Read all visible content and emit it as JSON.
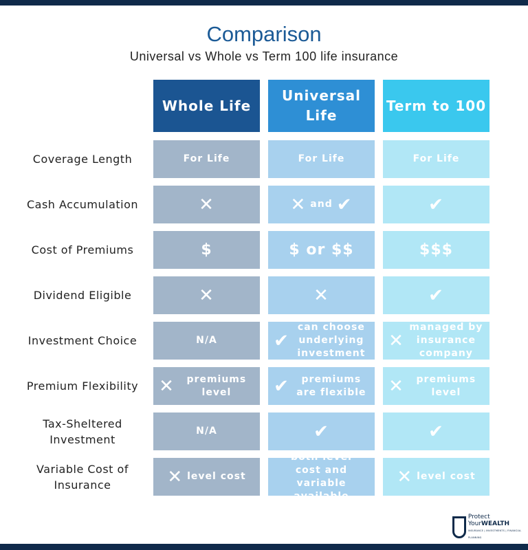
{
  "title": "Comparison",
  "subtitle": "Universal vs Whole vs Term 100 life insurance",
  "columns": [
    "Whole Life",
    "Universal Life",
    "Term to 100"
  ],
  "colors": {
    "header": [
      "#1b5592",
      "#2e8fd5",
      "#3ac8ee"
    ],
    "cells": [
      "#a2b5c9",
      "#a8d1ee",
      "#b1e7f6"
    ],
    "bars": "#0f2a4a"
  },
  "rows": [
    {
      "label": "Coverage Length",
      "cells": [
        {
          "icon": "",
          "text": "For Life"
        },
        {
          "icon": "",
          "text": "For Life"
        },
        {
          "icon": "",
          "text": "For Life"
        }
      ]
    },
    {
      "label": "Cash Accumulation",
      "cells": [
        {
          "icon": "x-icon",
          "text": ""
        },
        {
          "icon": "x-icon",
          "text": "and",
          "icon2": "check-icon"
        },
        {
          "icon": "check-icon",
          "text": ""
        }
      ]
    },
    {
      "label": "Cost of Premiums",
      "cells": [
        {
          "icon": "",
          "text": "$"
        },
        {
          "icon": "",
          "text": "$ or $$"
        },
        {
          "icon": "",
          "text": "$$$"
        }
      ]
    },
    {
      "label": "Dividend Eligible",
      "cells": [
        {
          "icon": "x-icon",
          "text": ""
        },
        {
          "icon": "x-icon",
          "text": ""
        },
        {
          "icon": "check-icon",
          "text": ""
        }
      ]
    },
    {
      "label": "Investment Choice",
      "cells": [
        {
          "icon": "",
          "text": "N/A"
        },
        {
          "icon": "check-icon",
          "text": "can choose underlying investment"
        },
        {
          "icon": "x-icon",
          "text": "managed by insurance company"
        }
      ]
    },
    {
      "label": "Premium Flexibility",
      "cells": [
        {
          "icon": "x-icon",
          "text": "premiums level"
        },
        {
          "icon": "check-icon",
          "text": "premiums are flexible"
        },
        {
          "icon": "x-icon",
          "text": "premiums level"
        }
      ]
    },
    {
      "label": "Tax-Sheltered Investment",
      "cells": [
        {
          "icon": "",
          "text": "N/A"
        },
        {
          "icon": "check-icon",
          "text": ""
        },
        {
          "icon": "check-icon",
          "text": ""
        }
      ]
    },
    {
      "label": "Variable Cost of Insurance",
      "cells": [
        {
          "icon": "x-icon",
          "text": "level cost"
        },
        {
          "icon": "",
          "text": "both level cost and variable available"
        },
        {
          "icon": "x-icon",
          "text": "level cost"
        }
      ]
    }
  ],
  "logo": {
    "name": "Protect Your",
    "strong": "WEALTH",
    "tagline": "INSURANCE | INVESTMENTS | FINANCIAL PLANNING"
  }
}
